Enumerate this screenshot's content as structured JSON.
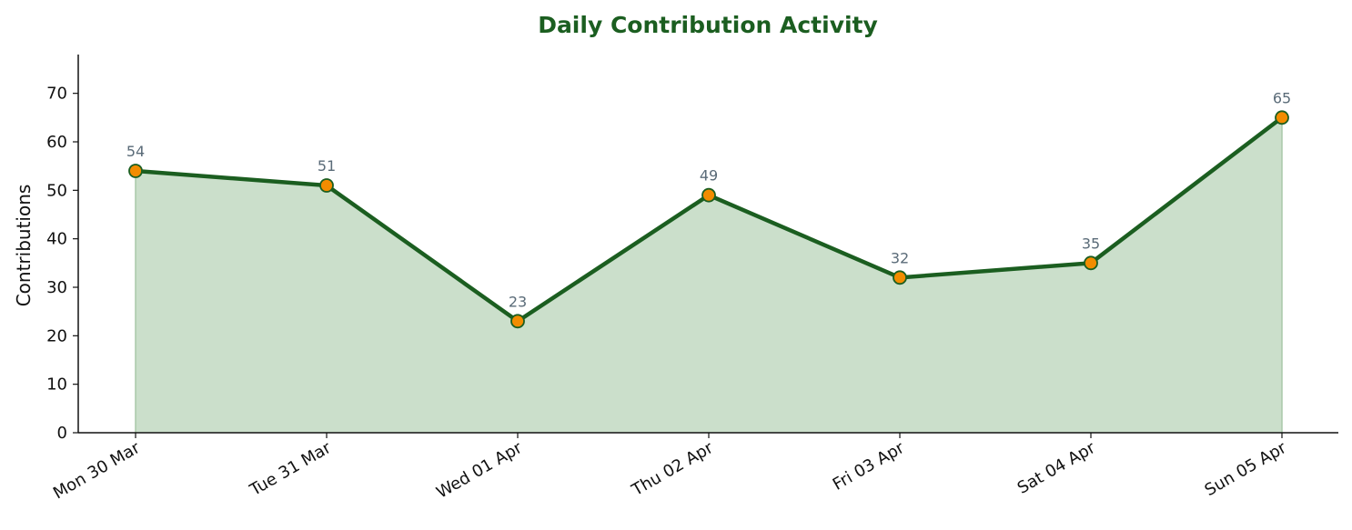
{
  "chart_data": {
    "type": "area",
    "title": "Daily Contribution Activity",
    "xlabel": "",
    "ylabel": "Contributions",
    "categories": [
      "Mon 30 Mar",
      "Tue 31 Mar",
      "Wed 01 Apr",
      "Thu 02 Apr",
      "Fri 03 Apr",
      "Sat 04 Apr",
      "Sun 05 Apr"
    ],
    "series": [
      {
        "values": [
          54,
          51,
          23,
          49,
          32,
          35,
          65
        ]
      }
    ],
    "ylim": [
      0,
      78
    ],
    "yticks": [
      0,
      10,
      20,
      30,
      40,
      50,
      60,
      70
    ],
    "grid": false,
    "legend": "none",
    "data_labels": true,
    "colors": {
      "title": "#1b5e20",
      "line": "#1b5e20",
      "fill": "#cbdfcb",
      "marker_fill": "#f28c00",
      "marker_edge": "#1b5e20",
      "data_label": "#5a6b78",
      "axis": "#111111"
    }
  }
}
